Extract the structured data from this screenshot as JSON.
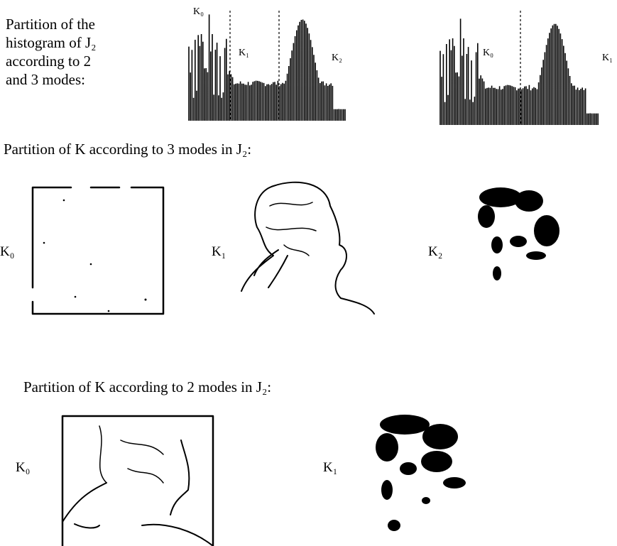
{
  "histogram_caption": [
    "Partition of the",
    "histogram of J₂",
    "according to 2",
    "and 3 modes:"
  ],
  "histograms": [
    {
      "labels": [
        "K₀",
        "K₁",
        "K₂"
      ]
    },
    {
      "labels": [
        "K₀",
        "K₁"
      ]
    }
  ],
  "three_modes": {
    "caption": "Partition of K according to 3 modes in J₂:",
    "labels": [
      "K₀",
      "K₁",
      "K₂"
    ]
  },
  "two_modes": {
    "caption": "Partition of K according to 2 modes in J₂:",
    "labels": [
      "K₀",
      "K₁"
    ]
  }
}
